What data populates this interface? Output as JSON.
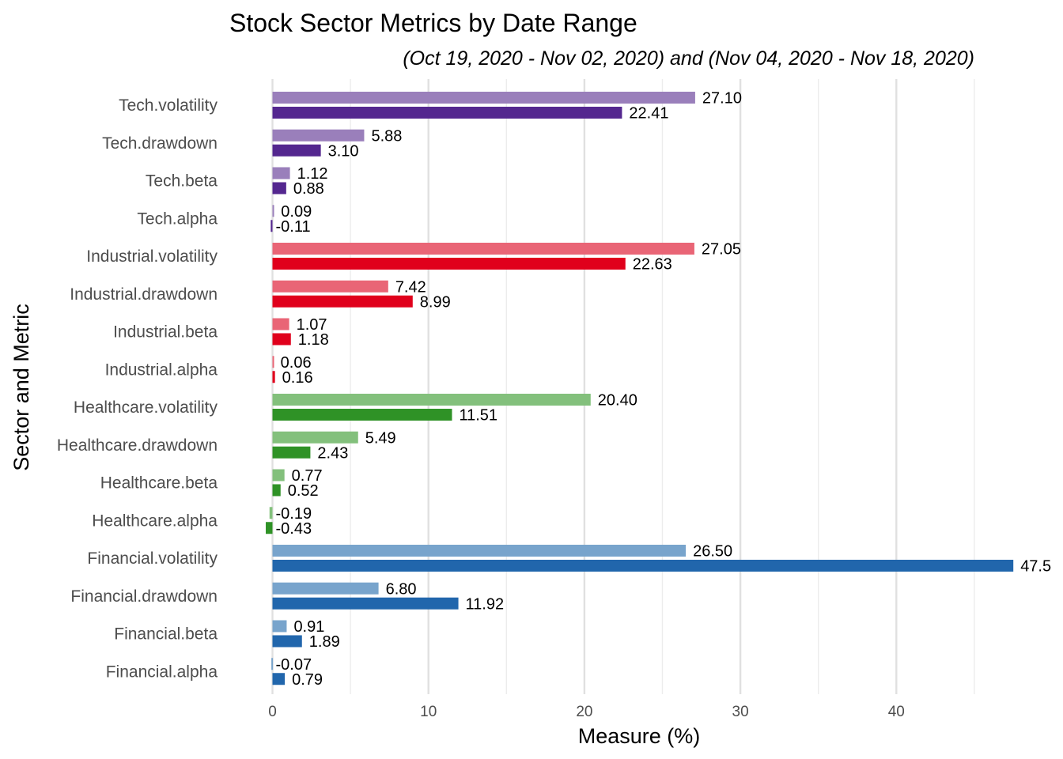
{
  "chart_data": {
    "type": "bar",
    "orientation": "horizontal",
    "title": "Stock Sector Metrics by Date Range",
    "subtitle": "(Oct 19, 2020 - Nov 02, 2020) and (Nov 04, 2020 - Nov 18, 2020)",
    "xlabel": "Measure (%)",
    "ylabel": "Sector and Metric",
    "xlim": [
      -0.6,
      47.6
    ],
    "x_ticks": [
      "0",
      "10",
      "20",
      "30",
      "40"
    ],
    "x_tick_values": [
      0,
      10,
      20,
      30,
      40
    ],
    "grid": true,
    "legend": "none",
    "categories": [
      "Tech.volatility",
      "Tech.drawdown",
      "Tech.beta",
      "Tech.alpha",
      "Industrial.volatility",
      "Industrial.drawdown",
      "Industrial.beta",
      "Industrial.alpha",
      "Healthcare.volatility",
      "Healthcare.drawdown",
      "Healthcare.beta",
      "Healthcare.alpha",
      "Financial.volatility",
      "Financial.drawdown",
      "Financial.beta",
      "Financial.alpha"
    ],
    "series": [
      {
        "values": [
          27.1,
          5.88,
          1.12,
          0.09,
          27.05,
          7.42,
          1.07,
          0.06,
          20.4,
          5.49,
          0.77,
          -0.19,
          26.5,
          6.8,
          0.91,
          -0.07
        ],
        "labels": [
          "27.10",
          "5.88",
          "1.12",
          "0.09",
          "27.05",
          "7.42",
          "1.07",
          "0.06",
          "20.40",
          "5.49",
          "0.77",
          "-0.19",
          "26.50",
          "6.80",
          "0.91",
          "-0.07"
        ]
      },
      {
        "values": [
          22.41,
          3.1,
          0.88,
          -0.11,
          22.63,
          8.99,
          1.18,
          0.16,
          11.51,
          2.43,
          0.52,
          -0.43,
          47.5,
          11.92,
          1.89,
          0.79
        ],
        "labels": [
          "22.41",
          "3.10",
          "0.88",
          "-0.11",
          "22.63",
          "8.99",
          "1.18",
          "0.16",
          "11.51",
          "2.43",
          "0.52",
          "-0.43",
          "47.5",
          "11.92",
          "1.89",
          "0.79"
        ]
      }
    ],
    "colors": {
      "Tech": [
        "#9a7fbb",
        "#54278f"
      ],
      "Industrial": [
        "#e96576",
        "#e0001c"
      ],
      "Healthcare": [
        "#83c07c",
        "#2f9226"
      ],
      "Financial": [
        "#78a4cc",
        "#2166ac"
      ]
    }
  }
}
